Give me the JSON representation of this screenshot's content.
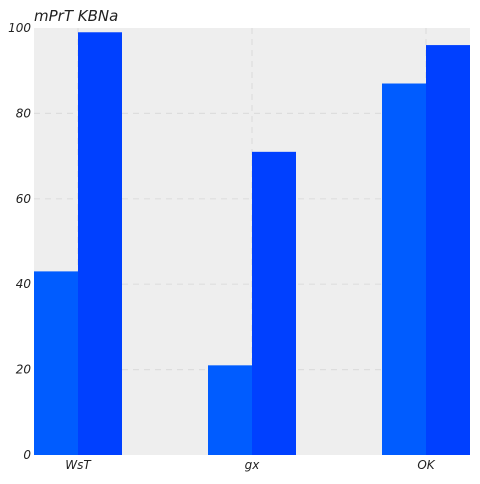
{
  "chart_data": {
    "type": "bar",
    "title": "mPrT KBNa",
    "xlabel": "",
    "ylabel": "",
    "categories": [
      "WsT",
      "gx",
      "OK"
    ],
    "series": [
      {
        "values": [
          43,
          21,
          87
        ],
        "color": "#005cff"
      },
      {
        "values": [
          99,
          71,
          96
        ],
        "color": "#0040ff"
      }
    ],
    "ylim": [
      0,
      100
    ],
    "yticks": [
      "0",
      "20",
      "40",
      "60",
      "80",
      "100"
    ],
    "grid": true,
    "plot_background": "#eeeeee",
    "grid_color": "#dddddd"
  }
}
